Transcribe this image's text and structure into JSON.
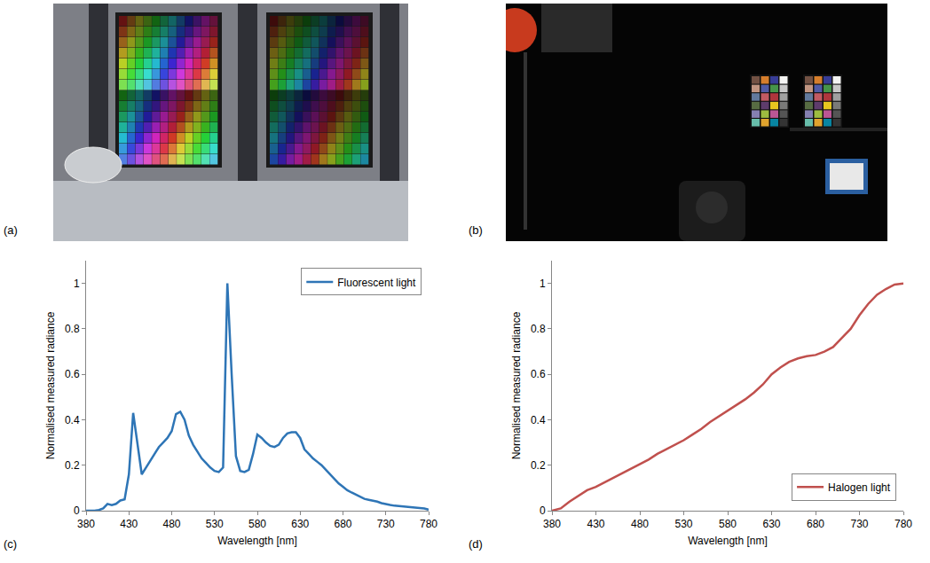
{
  "figure": {
    "photo_panels": [
      {
        "label": "(a)"
      },
      {
        "label": "(b)"
      }
    ]
  },
  "chart_data": [
    {
      "panel_label": "(c)",
      "type": "line",
      "x": [
        380,
        385,
        390,
        395,
        400,
        405,
        410,
        415,
        420,
        425,
        430,
        435,
        440,
        445,
        450,
        455,
        460,
        465,
        470,
        475,
        480,
        485,
        490,
        495,
        500,
        505,
        510,
        515,
        520,
        525,
        530,
        535,
        540,
        545,
        550,
        555,
        560,
        565,
        570,
        575,
        580,
        585,
        590,
        595,
        600,
        605,
        610,
        615,
        620,
        625,
        630,
        635,
        640,
        645,
        650,
        655,
        660,
        665,
        670,
        675,
        680,
        685,
        690,
        695,
        700,
        705,
        710,
        715,
        720,
        725,
        730,
        735,
        740,
        745,
        750,
        755,
        760,
        765,
        770,
        775,
        780
      ],
      "series": [
        {
          "name": "Fluorescent light",
          "color": "#2e75b6",
          "values": [
            0,
            0,
            0,
            0.003,
            0.01,
            0.03,
            0.025,
            0.03,
            0.045,
            0.05,
            0.16,
            0.43,
            0.3,
            0.16,
            0.19,
            0.22,
            0.25,
            0.28,
            0.3,
            0.32,
            0.35,
            0.425,
            0.435,
            0.4,
            0.33,
            0.29,
            0.26,
            0.23,
            0.21,
            0.19,
            0.175,
            0.17,
            0.19,
            1.0,
            0.6,
            0.24,
            0.175,
            0.17,
            0.18,
            0.25,
            0.335,
            0.32,
            0.3,
            0.285,
            0.28,
            0.29,
            0.32,
            0.34,
            0.345,
            0.345,
            0.32,
            0.27,
            0.25,
            0.23,
            0.215,
            0.2,
            0.18,
            0.16,
            0.14,
            0.12,
            0.105,
            0.09,
            0.08,
            0.07,
            0.06,
            0.052,
            0.048,
            0.045,
            0.04,
            0.033,
            0.028,
            0.025,
            0.022,
            0.02,
            0.018,
            0.016,
            0.015,
            0.013,
            0.012,
            0.01,
            0.005
          ]
        }
      ],
      "x_label": "Wavelength [nm]",
      "y_label": "Normalised measured radiance",
      "xlim": [
        380,
        780
      ],
      "xticks": [
        380,
        430,
        480,
        530,
        580,
        630,
        680,
        730,
        780
      ],
      "ylim": [
        0,
        1.1
      ],
      "yticks": [
        0,
        0.2,
        0.4,
        0.6,
        0.8,
        1
      ],
      "grid": false,
      "legend": "top right"
    },
    {
      "panel_label": "(d)",
      "type": "line",
      "x": [
        380,
        390,
        400,
        410,
        420,
        430,
        440,
        450,
        460,
        470,
        480,
        490,
        500,
        510,
        520,
        530,
        540,
        550,
        560,
        570,
        580,
        590,
        600,
        610,
        620,
        630,
        640,
        650,
        660,
        670,
        680,
        690,
        700,
        710,
        720,
        730,
        740,
        750,
        760,
        770,
        780
      ],
      "series": [
        {
          "name": "Halogen light",
          "color": "#c0504d",
          "values": [
            0,
            0.01,
            0.04,
            0.065,
            0.09,
            0.105,
            0.125,
            0.145,
            0.165,
            0.185,
            0.205,
            0.225,
            0.25,
            0.27,
            0.29,
            0.31,
            0.335,
            0.36,
            0.39,
            0.415,
            0.44,
            0.465,
            0.49,
            0.52,
            0.555,
            0.6,
            0.63,
            0.655,
            0.67,
            0.68,
            0.685,
            0.7,
            0.72,
            0.76,
            0.8,
            0.86,
            0.91,
            0.95,
            0.975,
            0.995,
            1.0
          ]
        }
      ],
      "x_label": "Wavelength [nm]",
      "y_label": "Normalised measured radiance",
      "xlim": [
        380,
        780
      ],
      "xticks": [
        380,
        430,
        480,
        530,
        580,
        630,
        680,
        730,
        780
      ],
      "ylim": [
        0,
        1.1
      ],
      "yticks": [
        0,
        0.2,
        0.4,
        0.6,
        0.8,
        1
      ],
      "grid": false,
      "legend": "bottom right"
    }
  ]
}
